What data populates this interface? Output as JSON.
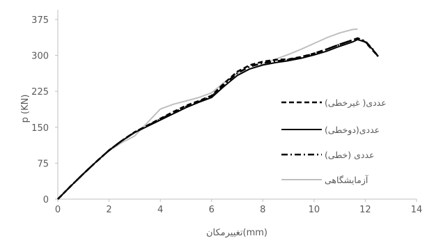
{
  "chart_data": {
    "type": "line",
    "xlabel": "تغییرمکان(mm)",
    "ylabel": "p (KN)",
    "xlim": [
      0,
      14
    ],
    "ylim": [
      0,
      375
    ],
    "x_ticks": [
      0,
      2,
      4,
      6,
      8,
      10,
      12,
      14
    ],
    "y_ticks": [
      0,
      75,
      150,
      225,
      300,
      375
    ],
    "grid": false,
    "legend_position": "right",
    "series": [
      {
        "name": "عددی( غیرخطی)",
        "color": "#000000",
        "style": "dashed",
        "x": [
          0,
          0.5,
          1,
          1.5,
          2,
          2.5,
          3,
          3.5,
          4,
          4.5,
          5,
          5.5,
          6,
          6.5,
          7,
          7.5,
          8,
          8.5,
          9,
          9.5,
          10,
          10.5,
          11,
          11.5,
          11.7,
          12,
          12.3,
          12.5
        ],
        "y": [
          0,
          27,
          53,
          78,
          102,
          122,
          140,
          154,
          168,
          182,
          195,
          205,
          216,
          242,
          266,
          280,
          287,
          291,
          292,
          297,
          304,
          313,
          323,
          332,
          335,
          328,
          310,
          298
        ]
      },
      {
        "name": "عددی(دوخطی)",
        "color": "#000000",
        "style": "solid",
        "x": [
          0,
          0.5,
          1,
          1.5,
          2,
          2.5,
          3,
          3.5,
          4,
          4.5,
          5,
          5.5,
          6,
          6.5,
          7,
          7.5,
          8,
          8.5,
          9,
          9.5,
          10,
          10.5,
          11,
          11.5,
          11.7,
          12,
          12.3,
          12.5
        ],
        "y": [
          0,
          27,
          53,
          78,
          102,
          122,
          139,
          152,
          165,
          178,
          191,
          202,
          212,
          236,
          258,
          272,
          280,
          285,
          289,
          294,
          301,
          309,
          319,
          328,
          333,
          328,
          312,
          298
        ]
      },
      {
        "name": "عددی (خطی)",
        "color": "#000000",
        "style": "dashdot",
        "x": [
          0,
          0.5,
          1,
          1.5,
          2,
          2.5,
          3,
          3.5,
          4,
          4.5,
          5,
          5.5,
          6,
          6.5,
          7,
          7.5,
          8,
          8.5,
          9,
          9.5,
          10,
          10.5,
          11,
          11.5,
          11.7,
          12,
          12.3,
          12.5
        ],
        "y": [
          0,
          27,
          53,
          78,
          102,
          122,
          140,
          153,
          167,
          180,
          193,
          203,
          214,
          240,
          263,
          277,
          284,
          288,
          291,
          296,
          304,
          313,
          323,
          332,
          336,
          330,
          312,
          298
        ]
      },
      {
        "name": "آزمایشگاهی",
        "color": "#bfbfbf",
        "style": "solid",
        "x": [
          0,
          0.5,
          1,
          1.5,
          2,
          2.5,
          3,
          3.5,
          4,
          4.5,
          5,
          5.5,
          6,
          6.5,
          7,
          7.5,
          8,
          8.5,
          9,
          9.5,
          10,
          10.5,
          11,
          11.5,
          11.7
        ],
        "y": [
          0,
          27,
          53,
          78,
          101,
          118,
          132,
          160,
          188,
          198,
          205,
          212,
          222,
          244,
          262,
          272,
          282,
          292,
          302,
          313,
          325,
          337,
          347,
          354,
          355
        ]
      }
    ]
  }
}
